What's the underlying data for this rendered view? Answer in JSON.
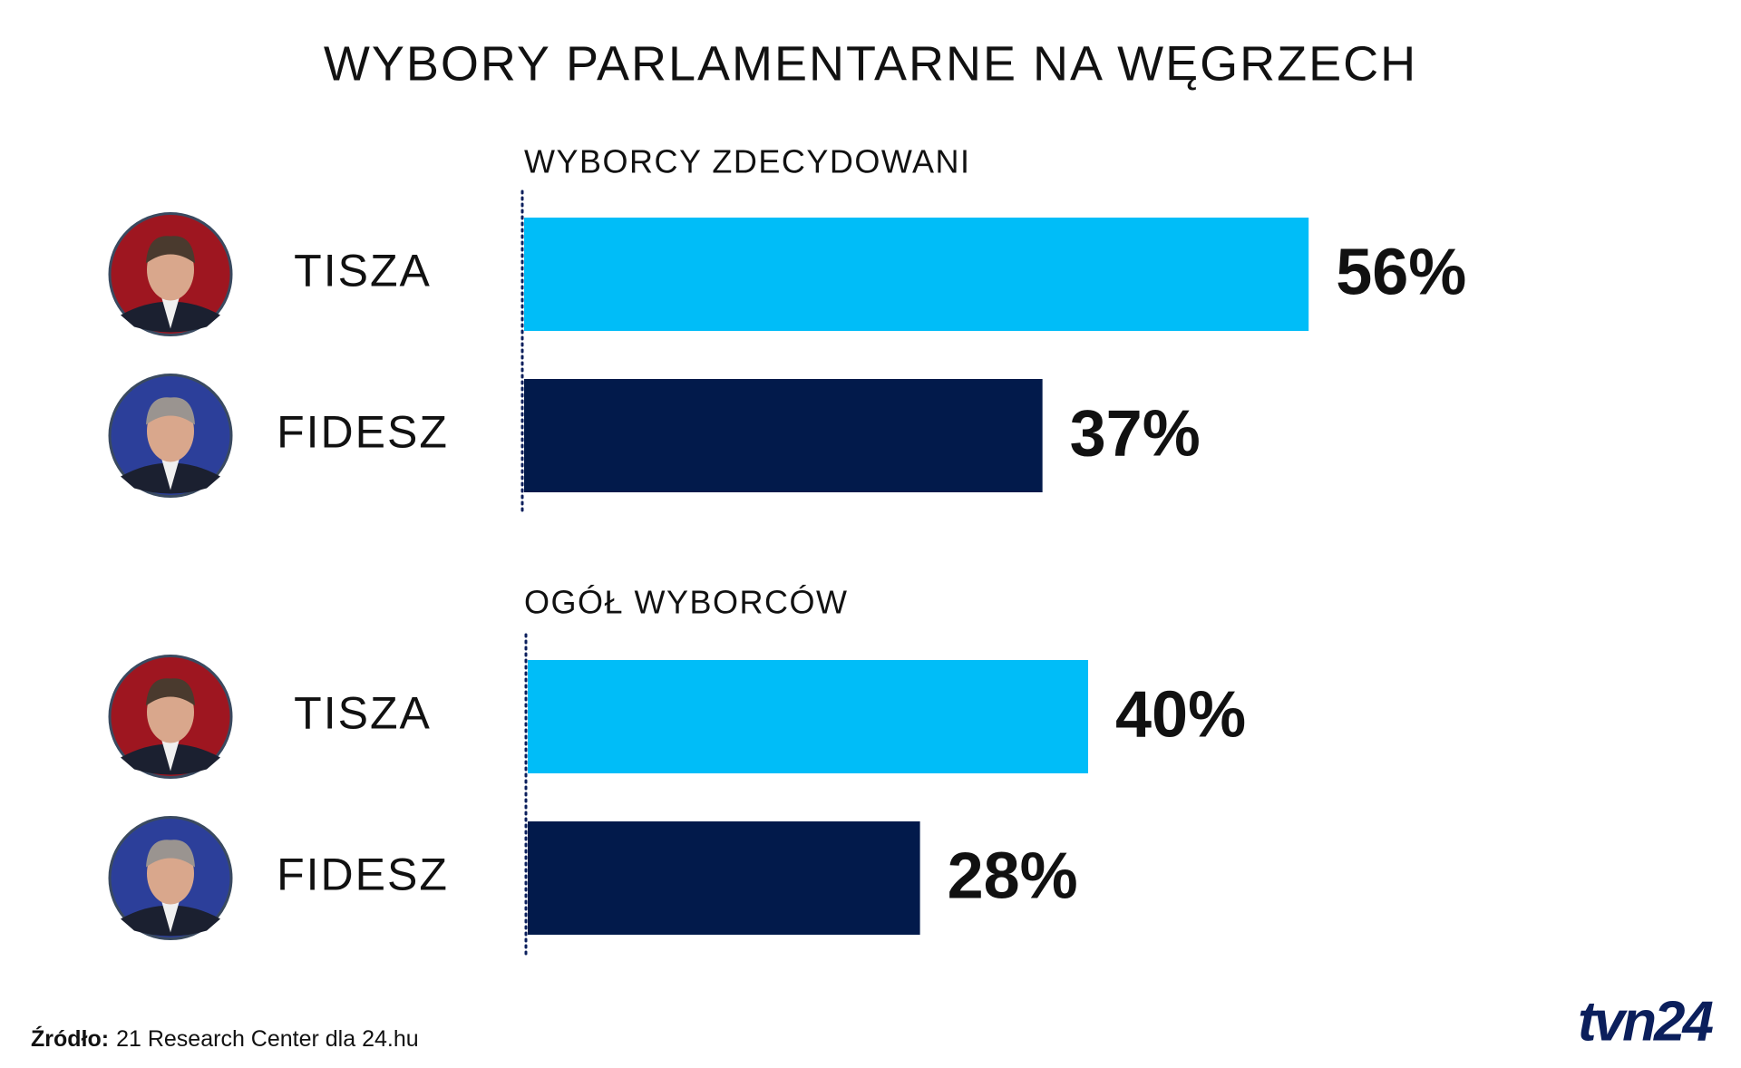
{
  "title": "WYBORY PARLAMENTARNE NA WĘGRZECH",
  "chart_data": [
    {
      "type": "bar",
      "subtitle": "WYBORCY ZDECYDOWANI",
      "categories": [
        "TISZA",
        "FIDESZ"
      ],
      "values": [
        56,
        37
      ],
      "value_labels": [
        "56%",
        "37%"
      ],
      "colors": [
        "#00bdf8",
        "#021a4b"
      ]
    },
    {
      "type": "bar",
      "subtitle": "OGÓŁ WYBORCÓW",
      "categories": [
        "TISZA",
        "FIDESZ"
      ],
      "values": [
        40,
        28
      ],
      "value_labels": [
        "40%",
        "28%"
      ],
      "colors": [
        "#00bdf8",
        "#021a4b"
      ]
    }
  ],
  "source": {
    "label": "Źródło:",
    "text": "21 Research Center dla 24.hu"
  },
  "logo": "tvn24"
}
